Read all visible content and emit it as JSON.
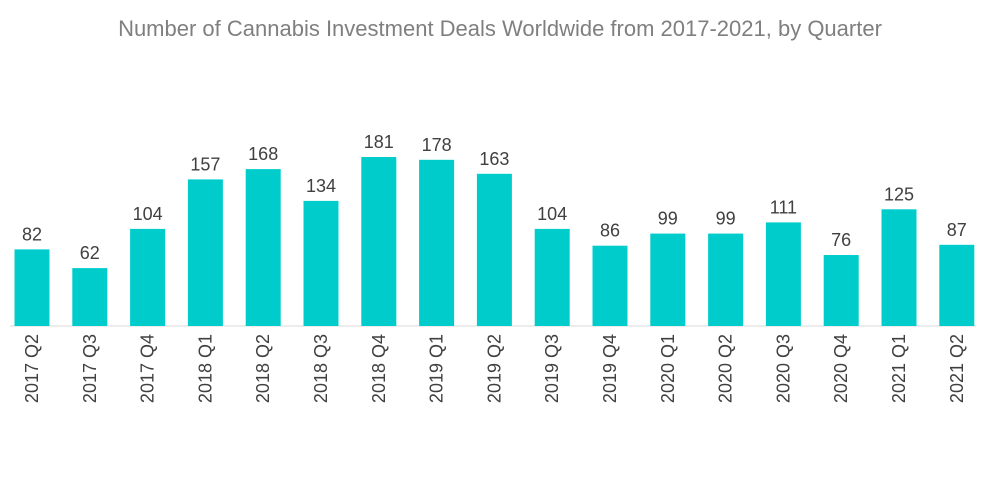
{
  "chart_data": {
    "type": "bar",
    "title": "Number of Cannabis Investment Deals Worldwide from 2017-2021, by Quarter",
    "xlabel": "",
    "ylabel": "",
    "ylim": [
      0,
      181
    ],
    "grid": false,
    "legend": "none",
    "categories": [
      "2017 Q2",
      "2017 Q3",
      "2017 Q4",
      "2018 Q1",
      "2018 Q2",
      "2018 Q3",
      "2018 Q4",
      "2019 Q1",
      "2019 Q2",
      "2019 Q3",
      "2019 Q4",
      "2020 Q1",
      "2020 Q2",
      "2020 Q3",
      "2020 Q4",
      "2021 Q1",
      "2021 Q2"
    ],
    "values": [
      82,
      62,
      104,
      157,
      168,
      134,
      181,
      178,
      163,
      104,
      86,
      99,
      99,
      111,
      76,
      125,
      87
    ],
    "colors": {
      "bar": "#00cccc",
      "text": "#404040",
      "title": "#7f7f7f"
    }
  }
}
